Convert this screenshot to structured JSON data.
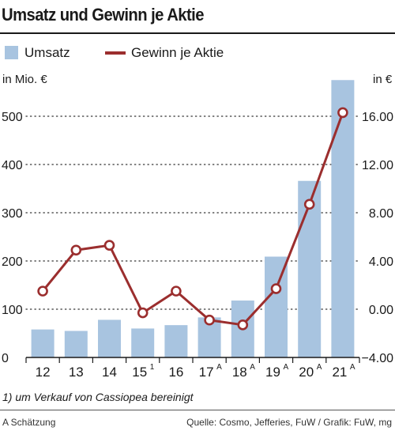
{
  "header": {
    "title": "Umsatz und Gewinn je Aktie"
  },
  "legend": {
    "revenue_label": "Umsatz",
    "eps_label": "Gewinn je Aktie"
  },
  "axes": {
    "left_unit": "in Mio. €",
    "right_unit": "in €"
  },
  "colors": {
    "bar": "#a8c4e0",
    "line": "#9b2e2e",
    "text": "#1a1a1a"
  },
  "chart_data": {
    "type": "bar",
    "categories": [
      "12",
      "13",
      "14",
      "15",
      "16",
      "17",
      "18",
      "19",
      "20",
      "21"
    ],
    "category_superscripts": [
      "",
      "",
      "",
      "1",
      "",
      "A",
      "A",
      "A",
      "A",
      "A"
    ],
    "series": [
      {
        "name": "Umsatz",
        "type": "bar",
        "axis": "left",
        "values": [
          58,
          55,
          78,
          60,
          67,
          83,
          118,
          209,
          366,
          575
        ]
      },
      {
        "name": "Gewinn je Aktie",
        "type": "line",
        "axis": "right",
        "values": [
          1.5,
          4.9,
          5.3,
          -0.3,
          1.5,
          -0.9,
          -1.3,
          1.7,
          8.7,
          16.3
        ]
      }
    ],
    "left_axis": {
      "label": "in Mio. €",
      "ylim": [
        0,
        600
      ],
      "ticks": [
        "0",
        "100",
        "200",
        "300",
        "400",
        "500"
      ]
    },
    "right_axis": {
      "label": "in €",
      "ylim": [
        -4,
        20
      ],
      "ticks": [
        "-4.00",
        "0.00",
        "4.00",
        "8.00",
        "12.00",
        "16.00"
      ]
    },
    "grid": "dotted horizontal",
    "legend": "top-left"
  },
  "footnote": "1) um Verkauf von Cassiopea bereinigt",
  "footer": {
    "left": "A Schätzung",
    "right": "Quelle: Cosmo, Jefferies, FuW / Grafik: FuW, mg"
  }
}
